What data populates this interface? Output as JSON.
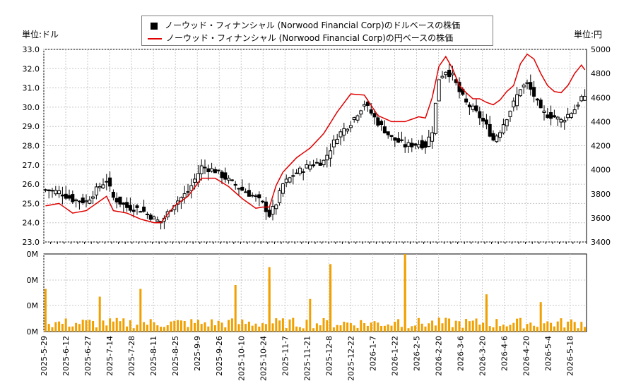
{
  "legend": {
    "usd_label": "ノーウッド・フィナンシャル (Norwood Financial Corp)のドルベースの株価",
    "jpy_label": "ノーウッド・フィナンシャル (Norwood Financial Corp)の円ベースの株価"
  },
  "units": {
    "left": "単位:ドル",
    "right": "単位:円"
  },
  "colors": {
    "candle": "#000000",
    "jpy_line": "#e00000",
    "volume": "#f0a000",
    "grid": "#c8c8c8",
    "axis": "#000000"
  },
  "chart_data": {
    "type": "candlestick_with_line_and_volume",
    "price_axis_left": {
      "min": 23.0,
      "max": 33.0,
      "ticks": [
        "23.0",
        "24.0",
        "25.0",
        "26.0",
        "27.0",
        "28.0",
        "29.0",
        "30.0",
        "31.0",
        "32.0",
        "33.0"
      ]
    },
    "price_axis_right": {
      "min": 3400,
      "max": 5000,
      "ticks": [
        "3400",
        "3600",
        "3800",
        "4000",
        "4200",
        "4400",
        "4600",
        "4800",
        "5000"
      ]
    },
    "volume_axis": {
      "ticks": [
        "0M",
        "0M",
        "0M",
        "0M"
      ]
    },
    "x_ticks": [
      "2025-5-29",
      "2025-6-12",
      "2025-6-27",
      "2025-7-14",
      "2025-7-28",
      "2025-8-11",
      "2025-8-25",
      "2025-9-9",
      "2025-9-26",
      "2025-10-10",
      "2025-10-24",
      "2025-11-7",
      "2025-11-21",
      "2025-12-8",
      "2025-12-22",
      "2026-1-7",
      "2026-1-22",
      "2026-2-5",
      "2026-2-20",
      "2026-3-6",
      "2026-3-20",
      "2026-4-6",
      "2026-4-20",
      "2026-5-4",
      "2026-5-18"
    ],
    "close_usd_anchors": [
      [
        0,
        25.7
      ],
      [
        4,
        25.6
      ],
      [
        8,
        25.2
      ],
      [
        12,
        25.1
      ],
      [
        16,
        25.9
      ],
      [
        18,
        26.2
      ],
      [
        20,
        25.3
      ],
      [
        24,
        24.8
      ],
      [
        28,
        24.7
      ],
      [
        32,
        24.2
      ],
      [
        34,
        24.0
      ],
      [
        38,
        25.0
      ],
      [
        42,
        25.6
      ],
      [
        46,
        26.9
      ],
      [
        50,
        26.7
      ],
      [
        54,
        26.2
      ],
      [
        58,
        25.7
      ],
      [
        62,
        25.3
      ],
      [
        64,
        25.0
      ],
      [
        66,
        24.4
      ],
      [
        68,
        25.0
      ],
      [
        70,
        26.0
      ],
      [
        74,
        26.6
      ],
      [
        78,
        27.0
      ],
      [
        82,
        27.2
      ],
      [
        86,
        28.5
      ],
      [
        90,
        29.2
      ],
      [
        94,
        30.2
      ],
      [
        98,
        29.2
      ],
      [
        102,
        28.4
      ],
      [
        106,
        28.0
      ],
      [
        110,
        28.1
      ],
      [
        112,
        28.0
      ],
      [
        114,
        28.8
      ],
      [
        116,
        31.5
      ],
      [
        118,
        31.9
      ],
      [
        120,
        31.6
      ],
      [
        122,
        30.8
      ],
      [
        124,
        30.2
      ],
      [
        126,
        29.9
      ],
      [
        128,
        29.5
      ],
      [
        130,
        29.0
      ],
      [
        132,
        28.3
      ],
      [
        134,
        28.8
      ],
      [
        136,
        29.5
      ],
      [
        138,
        30.2
      ],
      [
        140,
        31.0
      ],
      [
        142,
        31.2
      ],
      [
        144,
        30.6
      ],
      [
        146,
        29.8
      ],
      [
        148,
        29.6
      ],
      [
        150,
        29.5
      ],
      [
        152,
        29.3
      ],
      [
        154,
        29.6
      ],
      [
        156,
        29.9
      ],
      [
        158,
        30.5
      ],
      [
        159,
        30.4
      ]
    ],
    "close_jpy_anchors": [
      [
        0,
        3700
      ],
      [
        4,
        3720
      ],
      [
        8,
        3640
      ],
      [
        12,
        3660
      ],
      [
        16,
        3740
      ],
      [
        18,
        3780
      ],
      [
        20,
        3660
      ],
      [
        24,
        3640
      ],
      [
        28,
        3590
      ],
      [
        32,
        3560
      ],
      [
        34,
        3560
      ],
      [
        38,
        3700
      ],
      [
        42,
        3780
      ],
      [
        46,
        3930
      ],
      [
        50,
        3930
      ],
      [
        54,
        3860
      ],
      [
        58,
        3760
      ],
      [
        62,
        3680
      ],
      [
        64,
        3690
      ],
      [
        66,
        3690
      ],
      [
        68,
        3870
      ],
      [
        70,
        3980
      ],
      [
        74,
        4100
      ],
      [
        78,
        4180
      ],
      [
        82,
        4300
      ],
      [
        86,
        4480
      ],
      [
        90,
        4630
      ],
      [
        94,
        4620
      ],
      [
        98,
        4450
      ],
      [
        102,
        4400
      ],
      [
        106,
        4400
      ],
      [
        110,
        4440
      ],
      [
        112,
        4430
      ],
      [
        114,
        4600
      ],
      [
        116,
        4860
      ],
      [
        118,
        4940
      ],
      [
        120,
        4840
      ],
      [
        122,
        4700
      ],
      [
        124,
        4640
      ],
      [
        126,
        4590
      ],
      [
        128,
        4590
      ],
      [
        130,
        4560
      ],
      [
        132,
        4540
      ],
      [
        134,
        4580
      ],
      [
        136,
        4650
      ],
      [
        138,
        4700
      ],
      [
        140,
        4880
      ],
      [
        142,
        4960
      ],
      [
        144,
        4920
      ],
      [
        146,
        4800
      ],
      [
        148,
        4700
      ],
      [
        150,
        4650
      ],
      [
        152,
        4640
      ],
      [
        154,
        4700
      ],
      [
        156,
        4800
      ],
      [
        158,
        4870
      ],
      [
        159,
        4830
      ]
    ],
    "volume_spikes": [
      [
        0,
        0.55
      ],
      [
        16,
        0.45
      ],
      [
        28,
        0.55
      ],
      [
        56,
        0.6
      ],
      [
        66,
        0.83
      ],
      [
        78,
        0.42
      ],
      [
        84,
        0.87
      ],
      [
        104,
        0.16
      ],
      [
        106,
        0.9
      ],
      [
        130,
        0.42
      ],
      [
        146,
        0.38
      ]
    ]
  }
}
